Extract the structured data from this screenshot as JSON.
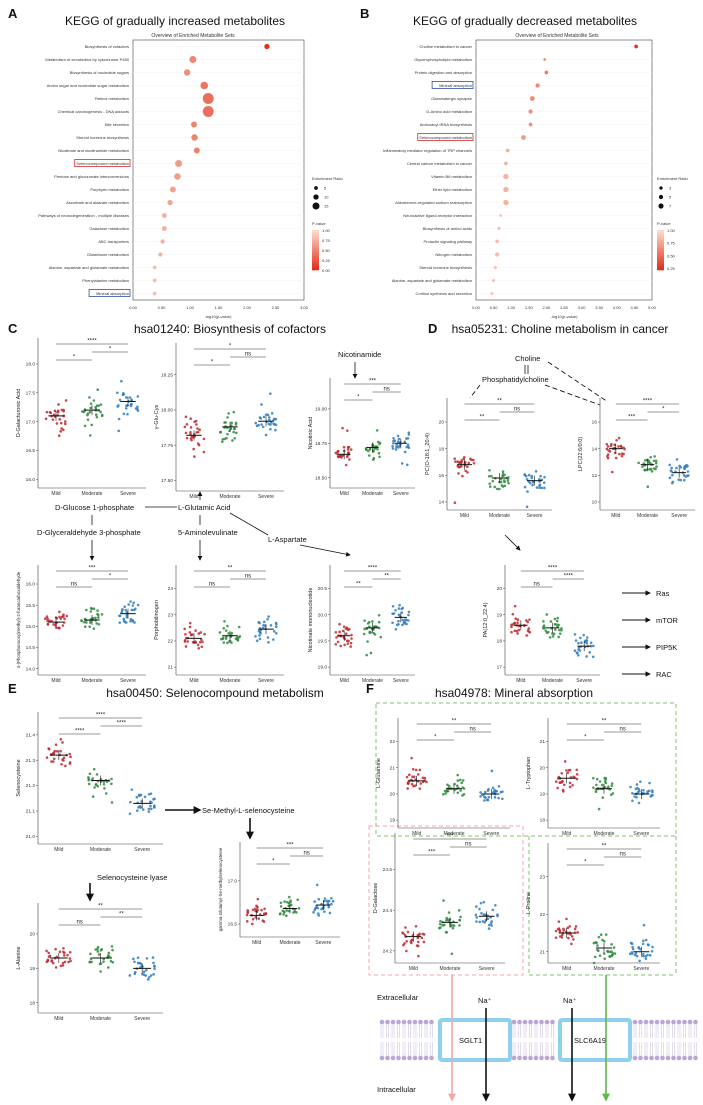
{
  "colors": {
    "mild": "#c0282e",
    "moderate": "#2e8b3d",
    "severe": "#2f7dc0",
    "dotlight": "#fbdcc8",
    "dotdark": "#e0301e"
  },
  "panelA": {
    "letter": "A",
    "title": "KEGG of gradually increased metabolites",
    "subtitle": "Overview of Enriched Metabolite Sets",
    "xlabel": "-log10(p-value)",
    "xticks": [
      "0.00",
      "0.50",
      "1.00",
      "1.50",
      "2.00",
      "2.50",
      "3.00"
    ],
    "legend_size_title": "Enrichment Ratio",
    "legend_size_values": [
      "5",
      "10",
      "15"
    ],
    "legend_color_title": "P-value",
    "legend_color_values": [
      "1.00",
      "0.75",
      "0.50",
      "0.25",
      "0.00"
    ],
    "highlight_red": "Selenocompound metabolism",
    "highlight_blue": "Mineral absorption"
  },
  "panelB": {
    "letter": "B",
    "title": "KEGG of gradually decreased metabolites",
    "subtitle": "Overview of Enriched Metabolite Sets",
    "xlabel": "-log10(p-value)",
    "xticks": [
      "0.00",
      "0.50",
      "1.00",
      "1.50",
      "2.00",
      "2.50",
      "3.00",
      "3.50",
      "4.00",
      "4.50",
      "5.00"
    ],
    "legend_size_title": "Enrichment Ratio",
    "legend_size_values": [
      "3",
      "5",
      "7"
    ],
    "legend_color_title": "P-value",
    "legend_color_values": [
      "1.00",
      "0.75",
      "0.50",
      "0.25"
    ],
    "highlight_red": "Selenocompound metabolism",
    "highlight_blue": "Mineral absorption"
  },
  "chart_data": [
    {
      "type": "scatter",
      "title": "KEGG of gradually increased metabolites",
      "xlabel": "-log10(p-value)",
      "xlim": [
        0,
        3.0
      ],
      "categories": [
        "Biosynthesis of cofactors",
        "Metabolism of xenobiotics by cytochrome P450",
        "Biosynthesis of nucleotide sugars",
        "Amino sugar and nucleotide sugar metabolism",
        "Retinol metabolism",
        "Chemical carcinogenesis - DNA adducts",
        "Bile secretion",
        "Steroid hormone biosynthesis",
        "Nicotinate and nicotinamide metabolism",
        "Selenocompound metabolism",
        "Pentose and glucuronate interconversions",
        "Porphyrin metabolism",
        "Ascorbate and aldarate metabolism",
        "Pathways of neurodegeneration - multiple diseases",
        "Galactose metabolism",
        "ABC transporters",
        "Glutathione metabolism",
        "Alanine, aspartate and glutamate metabolism",
        "Phenylalanine metabolism",
        "Mineral absorption"
      ],
      "values": [
        2.35,
        1.05,
        0.95,
        1.25,
        1.32,
        1.32,
        1.07,
        1.08,
        1.12,
        0.8,
        0.78,
        0.7,
        0.65,
        0.55,
        0.55,
        0.52,
        0.48,
        0.38,
        0.38,
        0.38
      ],
      "enrichment_ratio": [
        6,
        9,
        8,
        10,
        16,
        16,
        7,
        8,
        7,
        9,
        8,
        7,
        6,
        5,
        5,
        4,
        4,
        3,
        3,
        3
      ]
    },
    {
      "type": "scatter",
      "title": "KEGG of gradually decreased metabolites",
      "xlabel": "-log10(p-value)",
      "xlim": [
        0,
        5.0
      ],
      "categories": [
        "Choline metabolism in cancer",
        "Glycerophospholipid metabolism",
        "Protein digestion and absorption",
        "Mineral absorption",
        "Glutamatergic synapse",
        "D-Amino acid metabolism",
        "Aminoacyl-tRNA biosynthesis",
        "Selenocompound metabolism",
        "Inflammatory mediator regulation of TRP channels",
        "Central carbon metabolism in cancer",
        "Vitamin B6 metabolism",
        "Ether lipid metabolism",
        "Aldosterone-regulated sodium reabsorption",
        "Neuroactive ligand-receptor interaction",
        "Biosynthesis of amino acids",
        "Prolactin signaling pathway",
        "Nitrogen metabolism",
        "Steroid hormone biosynthesis",
        "Alanine, aspartate and glutamate metabolism",
        "Cortisol synthesis and secretion"
      ],
      "values": [
        4.55,
        1.95,
        2.0,
        1.75,
        1.6,
        1.55,
        1.55,
        1.35,
        0.9,
        0.85,
        0.85,
        0.85,
        0.85,
        0.7,
        0.65,
        0.6,
        0.6,
        0.55,
        0.5,
        0.45
      ],
      "enrichment_ratio": [
        3,
        1,
        3,
        4,
        5,
        4,
        3,
        5,
        3,
        3,
        6,
        6,
        6,
        1,
        2,
        3,
        4,
        2,
        2,
        2
      ]
    }
  ],
  "panelC": {
    "letter": "C",
    "title": "hsa01240: Biosynthesis of cofactors",
    "nodes": [
      "D-Glucose 1-phosphate",
      "L-Glutamic Acid",
      "D-Glyceraldehyde 3-phosphate",
      "5-Aminolevulinate",
      "L-Aspartate",
      "Nicotinamide"
    ],
    "plots": [
      {
        "ylabel": "D-Galacturonic Acid",
        "yticks": [
          "16.0",
          "16.5",
          "17.0",
          "17.5",
          "18.0"
        ],
        "sig": [
          "*",
          "*",
          "****"
        ],
        "means": [
          17.1,
          17.2,
          17.35
        ]
      },
      {
        "ylabel": "γ-Glu-Cys",
        "yticks": [
          "17.50",
          "17.75",
          "18.00",
          "18.25"
        ],
        "sig": [
          "*",
          "ns",
          "*"
        ],
        "means": [
          17.82,
          17.88,
          17.92
        ]
      },
      {
        "ylabel": "Nicotinic Acid",
        "yticks": [
          "18.50",
          "18.75",
          "19.00"
        ],
        "sig": [
          "*",
          "ns",
          "***"
        ],
        "means": [
          18.67,
          18.72,
          18.75
        ]
      },
      {
        "ylabel": "4-(Phosphonooxy)methyl)-2-furancarboxaldehyde",
        "yticks": [
          "14.0",
          "14.5",
          "15.0",
          "15.5",
          "16.0"
        ],
        "sig": [
          "ns",
          "*",
          "***"
        ],
        "means": [
          15.1,
          15.15,
          15.3
        ]
      },
      {
        "ylabel": "Porphobilinogen",
        "yticks": [
          "21",
          "22",
          "23",
          "24"
        ],
        "sig": [
          "ns",
          "ns",
          "**"
        ],
        "means": [
          22.1,
          22.2,
          22.45
        ]
      },
      {
        "ylabel": "Nicotinate mononucleotide",
        "yticks": [
          "19.0",
          "19.5",
          "20.0",
          "20.5"
        ],
        "sig": [
          "**",
          "**",
          "****"
        ],
        "means": [
          19.6,
          19.75,
          19.95
        ]
      }
    ]
  },
  "panelD": {
    "letter": "D",
    "title": "hsa05231: Choline metabolism in cancer",
    "nodes": [
      "Choline",
      "Phosphatidylcholine"
    ],
    "targets": [
      "Ras",
      "mTOR",
      "PIP5K",
      "RAC"
    ],
    "plots": [
      {
        "ylabel": "PC(O-18:1_20:4)",
        "yticks": [
          "14",
          "16",
          "18",
          "20"
        ],
        "sig": [
          "**",
          "ns",
          "**"
        ],
        "means": [
          16.8,
          15.8,
          15.6
        ]
      },
      {
        "ylabel": "LPC(22:6/0:0)",
        "yticks": [
          "10",
          "12",
          "14",
          "16"
        ],
        "sig": [
          "***",
          "*",
          "****"
        ],
        "means": [
          14.0,
          12.8,
          12.2
        ]
      },
      {
        "ylabel": "PA(12:0_22:4)",
        "yticks": [
          "17",
          "18",
          "19",
          "20"
        ],
        "sig": [
          "ns",
          "****",
          "****"
        ],
        "means": [
          18.6,
          18.5,
          17.8
        ]
      }
    ]
  },
  "panelE": {
    "letter": "E",
    "title": "hsa00450: Selenocompound metabolism",
    "nodes": [
      "Se-Methyl-L-selenocysteine",
      "Selenocysteine lyase"
    ],
    "plots": [
      {
        "ylabel": "Selenocysteine",
        "yticks": [
          "21.0",
          "21.1",
          "21.2",
          "21.3",
          "21.4"
        ],
        "sig": [
          "****",
          "****",
          "****"
        ],
        "means": [
          21.32,
          21.22,
          21.13
        ]
      },
      {
        "ylabel": "gamma-Glutamyl-Se-methylselenocysteine",
        "yticks": [
          "16.5",
          "17.0"
        ],
        "sig": [
          "*",
          "ns",
          "***"
        ],
        "means": [
          16.6,
          16.68,
          16.72
        ]
      },
      {
        "ylabel": "L-Alanine",
        "yticks": [
          "18",
          "19",
          "20"
        ],
        "sig": [
          "ns",
          "**",
          "**"
        ],
        "means": [
          19.3,
          19.3,
          19.0
        ]
      }
    ]
  },
  "panelF": {
    "letter": "F",
    "title": "hsa04978: Mineral absorption",
    "membrane_top": "Extracellular",
    "membrane_bottom": "Intracellular",
    "ion": "Na⁺",
    "transporters": [
      "SGLT1",
      "SLC6A19"
    ],
    "plots": [
      {
        "ylabel": "L-Glutamine",
        "yticks": [
          "19",
          "20",
          "21",
          "22"
        ],
        "sig": [
          "*",
          "ns",
          "**"
        ],
        "means": [
          20.5,
          20.2,
          20.0
        ]
      },
      {
        "ylabel": "L-Tryptophan",
        "yticks": [
          "18",
          "19",
          "20",
          "21"
        ],
        "sig": [
          "*",
          "ns",
          "**"
        ],
        "means": [
          19.6,
          19.2,
          19.0
        ]
      },
      {
        "ylabel": "D-Galactose",
        "yticks": [
          "24.2",
          "24.4",
          "24.6"
        ],
        "sig": [
          "***",
          "ns",
          "***"
        ],
        "means": [
          24.27,
          24.34,
          24.37
        ]
      },
      {
        "ylabel": "L-Proline",
        "yticks": [
          "21",
          "22",
          "23"
        ],
        "sig": [
          "*",
          "ns",
          "**"
        ],
        "means": [
          21.5,
          21.1,
          21.0
        ]
      }
    ]
  },
  "groups": [
    "Mild",
    "Moderate",
    "Severe"
  ]
}
